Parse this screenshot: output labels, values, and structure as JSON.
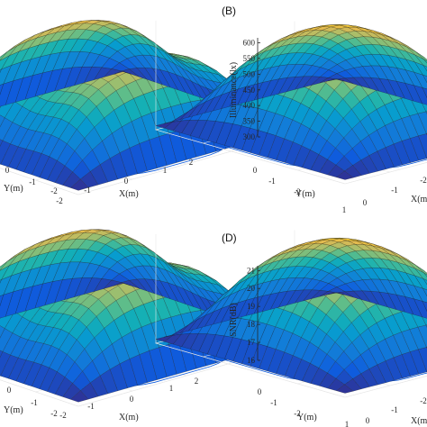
{
  "chart_data": [
    {
      "type": "surface",
      "panel_label": "",
      "title": "",
      "xlabel": "X(m)",
      "ylabel": "Y(m)",
      "zlabel": "",
      "x_ticks": [
        "-2",
        "-1",
        "0",
        "1",
        "2"
      ],
      "y_ticks": [
        "-2",
        "-1",
        "0"
      ],
      "z_ticks": [],
      "surface": "saddle-shaped illuminance-like surface, high ridge along the X direction, dips toward the corners",
      "contour_projection": true
    },
    {
      "type": "surface",
      "panel_label": "(B)",
      "title": "",
      "xlabel": "X(m)",
      "ylabel": "Y(m)",
      "zlabel": "Illuminance(lx)",
      "x_ticks": [
        "-2",
        "-1",
        "0",
        "1"
      ],
      "y_ticks": [
        "-2",
        "-1",
        "0",
        "1",
        "2"
      ],
      "z_ticks": [
        "300",
        "350",
        "400",
        "450",
        "500",
        "550",
        "600"
      ],
      "zlim": [
        300,
        650
      ],
      "peak_value": 620,
      "corner_value": 310,
      "contour_projection": true
    },
    {
      "type": "surface",
      "panel_label": "",
      "title": "",
      "xlabel": "X(m)",
      "ylabel": "Y(m)",
      "zlabel": "",
      "x_ticks": [
        "-2",
        "-1",
        "0",
        "1",
        "2"
      ],
      "y_ticks": [
        "-2",
        "-1",
        "0"
      ],
      "z_ticks": [],
      "surface": "saddle-shaped SNR-like surface, high ridge along the X direction, dips toward the corners",
      "contour_projection": true
    },
    {
      "type": "surface",
      "panel_label": "(D)",
      "title": "",
      "xlabel": "X(m)",
      "ylabel": "Y(m)",
      "zlabel": "SNR(dB)",
      "x_ticks": [
        "-2",
        "-1",
        "0",
        "1"
      ],
      "y_ticks": [
        "-2",
        "-1",
        "0",
        "1",
        "2"
      ],
      "z_ticks": [
        "16",
        "17",
        "18",
        "19",
        "20",
        "21"
      ],
      "zlim": [
        16,
        21.5
      ],
      "peak_value": 21.2,
      "corner_value": 16.2,
      "contour_projection": true
    }
  ]
}
